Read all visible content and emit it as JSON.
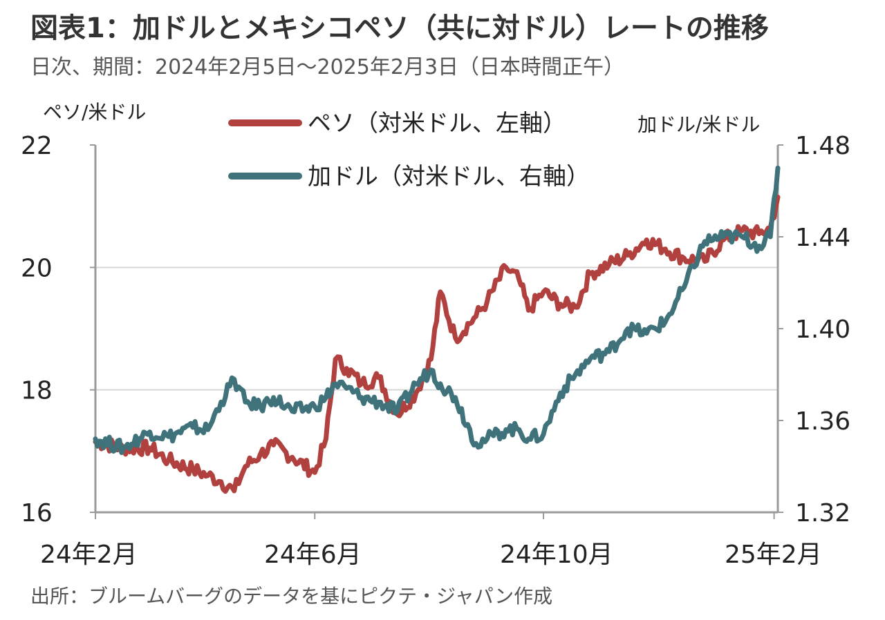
{
  "title": "図表1：加ドルとメキシコペソ（共に対ドル）レートの推移",
  "subtitle": "日次、期間：2024年2月5日～2025年2月3日（日本時間正午）",
  "source": "出所：ブルームバーグのデータを基にピクテ・ジャパン作成",
  "chart_data": {
    "type": "line",
    "left_axis": {
      "label": "ペソ/米ドル",
      "range": [
        16,
        22
      ],
      "ticks": [
        "16",
        "18",
        "20",
        "22"
      ]
    },
    "right_axis": {
      "label": "加ドル/米ドル",
      "range": [
        1.32,
        1.48
      ],
      "ticks": [
        "1.32",
        "1.36",
        "1.40",
        "1.44",
        "1.48"
      ]
    },
    "x_ticks": [
      "24年2月",
      "24年6月",
      "24年10月",
      "25年2月"
    ],
    "x_range": [
      "2024-02-05",
      "2025-02-03"
    ],
    "grid": "horizontal",
    "legend_position": "top",
    "series": [
      {
        "name": "ペソ（対米ドル、左軸）",
        "axis": "left",
        "color": "#b0413e",
        "points": [
          [
            "2024-02-05",
            17.15
          ],
          [
            "2024-02-20",
            17.05
          ],
          [
            "2024-03-05",
            17.05
          ],
          [
            "2024-03-15",
            16.85
          ],
          [
            "2024-03-28",
            16.7
          ],
          [
            "2024-04-05",
            16.6
          ],
          [
            "2024-04-12",
            16.5
          ],
          [
            "2024-04-19",
            16.35
          ],
          [
            "2024-04-25",
            16.75
          ],
          [
            "2024-05-03",
            16.95
          ],
          [
            "2024-05-10",
            17.1
          ],
          [
            "2024-05-20",
            16.9
          ],
          [
            "2024-06-01",
            16.65
          ],
          [
            "2024-06-07",
            17.2
          ],
          [
            "2024-06-12",
            18.5
          ],
          [
            "2024-06-18",
            18.35
          ],
          [
            "2024-06-26",
            18.1
          ],
          [
            "2024-07-05",
            18.2
          ],
          [
            "2024-07-15",
            17.6
          ],
          [
            "2024-07-25",
            17.95
          ],
          [
            "2024-08-02",
            18.5
          ],
          [
            "2024-08-07",
            19.6
          ],
          [
            "2024-08-15",
            18.85
          ],
          [
            "2024-08-26",
            19.2
          ],
          [
            "2024-09-01",
            19.45
          ],
          [
            "2024-09-11",
            20.0
          ],
          [
            "2024-09-18",
            19.8
          ],
          [
            "2024-09-23",
            19.3
          ],
          [
            "2024-10-01",
            19.6
          ],
          [
            "2024-10-10",
            19.4
          ],
          [
            "2024-10-18",
            19.35
          ],
          [
            "2024-10-26",
            19.9
          ],
          [
            "2024-11-05",
            20.05
          ],
          [
            "2024-11-15",
            20.2
          ],
          [
            "2024-11-25",
            20.45
          ],
          [
            "2024-12-05",
            20.3
          ],
          [
            "2024-12-15",
            20.15
          ],
          [
            "2024-12-26",
            20.1
          ],
          [
            "2025-01-05",
            20.45
          ],
          [
            "2025-01-15",
            20.6
          ],
          [
            "2025-01-24",
            20.55
          ],
          [
            "2025-01-30",
            20.65
          ],
          [
            "2025-02-03",
            21.15
          ]
        ]
      },
      {
        "name": "加ドル（対米ドル、右軸）",
        "axis": "right",
        "color": "#3f727a",
        "points": [
          [
            "2024-02-05",
            1.352
          ],
          [
            "2024-02-20",
            1.348
          ],
          [
            "2024-03-05",
            1.355
          ],
          [
            "2024-03-15",
            1.353
          ],
          [
            "2024-03-28",
            1.357
          ],
          [
            "2024-04-05",
            1.356
          ],
          [
            "2024-04-12",
            1.368
          ],
          [
            "2024-04-19",
            1.378
          ],
          [
            "2024-04-25",
            1.368
          ],
          [
            "2024-05-03",
            1.366
          ],
          [
            "2024-05-10",
            1.37
          ],
          [
            "2024-05-20",
            1.364
          ],
          [
            "2024-06-01",
            1.366
          ],
          [
            "2024-06-07",
            1.37
          ],
          [
            "2024-06-12",
            1.376
          ],
          [
            "2024-06-18",
            1.374
          ],
          [
            "2024-06-26",
            1.37
          ],
          [
            "2024-07-05",
            1.368
          ],
          [
            "2024-07-15",
            1.364
          ],
          [
            "2024-07-25",
            1.376
          ],
          [
            "2024-08-02",
            1.382
          ],
          [
            "2024-08-07",
            1.376
          ],
          [
            "2024-08-15",
            1.37
          ],
          [
            "2024-08-26",
            1.35
          ],
          [
            "2024-09-01",
            1.352
          ],
          [
            "2024-09-11",
            1.356
          ],
          [
            "2024-09-18",
            1.356
          ],
          [
            "2024-09-23",
            1.352
          ],
          [
            "2024-10-01",
            1.354
          ],
          [
            "2024-10-10",
            1.372
          ],
          [
            "2024-10-18",
            1.38
          ],
          [
            "2024-10-26",
            1.387
          ],
          [
            "2024-11-05",
            1.39
          ],
          [
            "2024-11-15",
            1.4
          ],
          [
            "2024-11-25",
            1.398
          ],
          [
            "2024-12-05",
            1.403
          ],
          [
            "2024-12-15",
            1.418
          ],
          [
            "2024-12-26",
            1.438
          ],
          [
            "2025-01-05",
            1.44
          ],
          [
            "2025-01-15",
            1.44
          ],
          [
            "2025-01-24",
            1.436
          ],
          [
            "2025-01-30",
            1.44
          ],
          [
            "2025-02-03",
            1.47
          ]
        ]
      }
    ]
  }
}
